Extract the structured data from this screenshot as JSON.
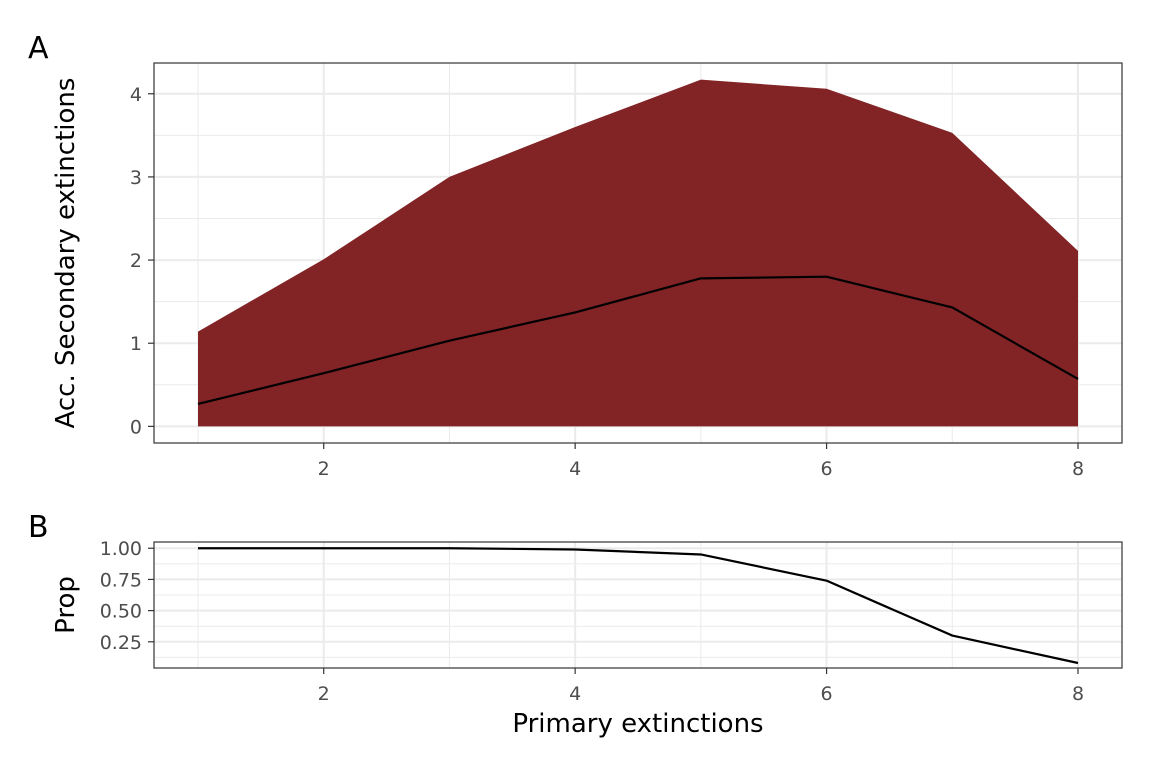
{
  "chart_data": [
    {
      "tag": "A",
      "type": "area",
      "xlabel": "",
      "ylabel": "Acc. Secondary extinctions",
      "xlim": [
        0.65,
        8.35
      ],
      "ylim": [
        -0.2,
        4.37
      ],
      "xticks": [
        2,
        4,
        6,
        8
      ],
      "yticks": [
        0,
        1,
        2,
        3,
        4
      ],
      "grid": true,
      "colors": {
        "ribbon": "#822326",
        "line": "#000000"
      },
      "x": [
        1,
        2,
        3,
        4,
        5,
        6,
        7,
        8
      ],
      "upper": [
        1.14,
        2.01,
        3.0,
        3.6,
        4.17,
        4.06,
        3.53,
        2.11
      ],
      "lower": [
        0,
        0,
        0,
        0,
        0,
        0,
        0,
        0
      ],
      "mean": [
        0.27,
        0.64,
        1.03,
        1.37,
        1.78,
        1.8,
        1.43,
        0.57
      ]
    },
    {
      "tag": "B",
      "type": "line",
      "xlabel": "Primary extinctions",
      "ylabel": "Prop",
      "xlim": [
        0.65,
        8.35
      ],
      "ylim": [
        0.04,
        1.05
      ],
      "xticks": [
        2,
        4,
        6,
        8
      ],
      "yticks": [
        0.25,
        0.5,
        0.75,
        1.0
      ],
      "yticklabels": [
        "0.25",
        "0.50",
        "0.75",
        "1.00"
      ],
      "grid": true,
      "colors": {
        "line": "#000000"
      },
      "x": [
        1,
        2,
        3,
        4,
        5,
        6,
        7,
        8
      ],
      "values": [
        1.0,
        1.0,
        1.0,
        0.99,
        0.95,
        0.74,
        0.3,
        0.08
      ]
    }
  ]
}
